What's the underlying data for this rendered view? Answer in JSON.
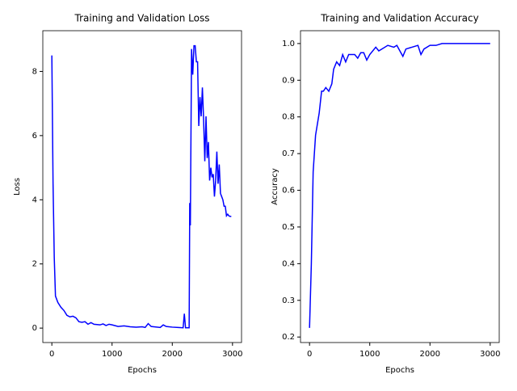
{
  "chart_data": [
    {
      "type": "line",
      "title": "Training and Validation Loss",
      "xlabel": "Epochs",
      "ylabel": "Loss",
      "x": [
        0,
        20,
        40,
        60,
        100,
        150,
        200,
        250,
        300,
        350,
        400,
        450,
        500,
        550,
        600,
        650,
        700,
        800,
        850,
        900,
        950,
        1000,
        1100,
        1200,
        1300,
        1400,
        1500,
        1550,
        1600,
        1650,
        1800,
        1850,
        1900,
        2000,
        2100,
        2180,
        2200,
        2220,
        2280,
        2290,
        2300,
        2320,
        2340,
        2360,
        2380,
        2400,
        2420,
        2440,
        2460,
        2480,
        2500,
        2520,
        2540,
        2560,
        2580,
        2600,
        2620,
        2640,
        2660,
        2680,
        2700,
        2720,
        2740,
        2760,
        2780,
        2800,
        2820,
        2840,
        2860,
        2880,
        2900,
        2920,
        2940,
        2960,
        2980
      ],
      "series": [
        {
          "name": "Loss",
          "color": "#0000ff",
          "values": [
            8.5,
            4.5,
            2.2,
            1.0,
            0.8,
            0.65,
            0.55,
            0.4,
            0.35,
            0.37,
            0.32,
            0.2,
            0.18,
            0.2,
            0.12,
            0.17,
            0.12,
            0.1,
            0.13,
            0.08,
            0.12,
            0.1,
            0.05,
            0.07,
            0.04,
            0.03,
            0.04,
            0.02,
            0.14,
            0.05,
            0.02,
            0.1,
            0.05,
            0.03,
            0.02,
            0.01,
            0.45,
            0.01,
            0.01,
            3.9,
            3.2,
            8.7,
            7.9,
            8.8,
            8.8,
            8.3,
            8.3,
            6.3,
            7.2,
            6.6,
            7.5,
            6.5,
            5.2,
            6.6,
            5.3,
            5.8,
            4.6,
            5.0,
            4.7,
            4.8,
            4.1,
            4.6,
            5.5,
            4.5,
            5.1,
            4.2,
            4.1,
            4.0,
            3.8,
            3.8,
            3.5,
            3.55,
            3.5,
            3.48,
            3.48
          ]
        }
      ],
      "xlim": [
        -150,
        3150
      ],
      "ylim": [
        -0.45,
        9.27
      ],
      "xticks": [
        0,
        1000,
        2000,
        3000
      ],
      "yticks": [
        0,
        2,
        4,
        6,
        8
      ]
    },
    {
      "type": "line",
      "title": "Training and Validation Accuracy",
      "xlabel": "Epochs",
      "ylabel": "Accuracy",
      "x": [
        0,
        30,
        60,
        100,
        130,
        160,
        200,
        230,
        270,
        320,
        370,
        400,
        450,
        500,
        550,
        600,
        650,
        750,
        800,
        850,
        900,
        950,
        1000,
        1100,
        1150,
        1200,
        1300,
        1400,
        1450,
        1500,
        1550,
        1600,
        1700,
        1800,
        1850,
        1900,
        2000,
        2100,
        2200,
        3000
      ],
      "series": [
        {
          "name": "Accuracy",
          "color": "#0000ff",
          "values": [
            0.225,
            0.4,
            0.65,
            0.75,
            0.78,
            0.81,
            0.87,
            0.87,
            0.88,
            0.87,
            0.89,
            0.93,
            0.95,
            0.94,
            0.97,
            0.95,
            0.97,
            0.97,
            0.96,
            0.975,
            0.975,
            0.955,
            0.97,
            0.99,
            0.98,
            0.985,
            0.995,
            0.99,
            0.995,
            0.98,
            0.965,
            0.985,
            0.99,
            0.995,
            0.97,
            0.985,
            0.995,
            0.995,
            1.0,
            1.0
          ]
        }
      ],
      "xlim": [
        -150,
        3150
      ],
      "ylim": [
        0.185,
        1.035
      ],
      "xticks": [
        0,
        1000,
        2000,
        3000
      ],
      "yticks": [
        {
          "value": 0.2,
          "label": "0.2"
        },
        {
          "value": 0.3,
          "label": "0.3"
        },
        {
          "value": 0.4,
          "label": "0.4"
        },
        {
          "value": 0.5,
          "label": "0.5"
        },
        {
          "value": 0.6,
          "label": "0.6"
        },
        {
          "value": 0.7,
          "label": "0.7"
        },
        {
          "value": 0.8,
          "label": "0.8"
        },
        {
          "value": 0.9,
          "label": "0.9"
        },
        {
          "value": 1.0,
          "label": "1.0"
        }
      ]
    }
  ]
}
